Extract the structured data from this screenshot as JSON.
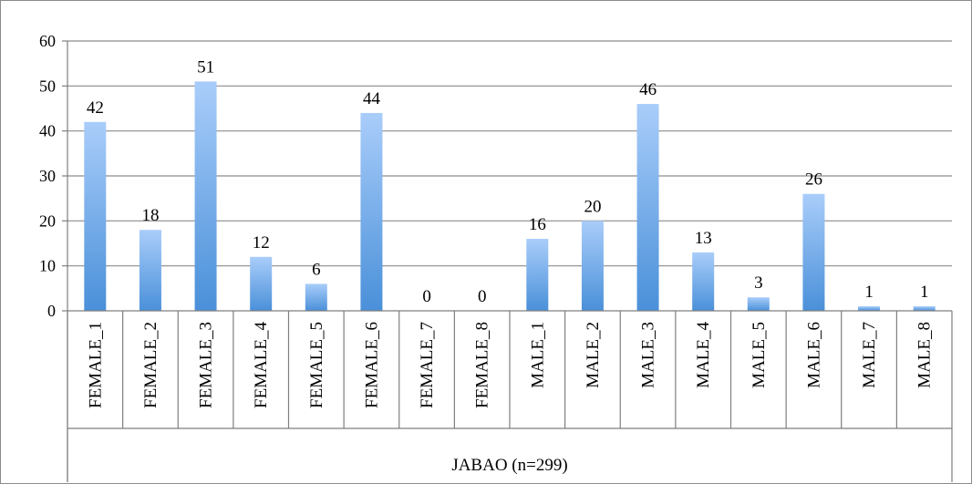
{
  "chart_data": {
    "type": "bar",
    "categories": [
      "FEMALE_1",
      "FEMALE_2",
      "FEMALE_3",
      "FEMALE_4",
      "FEMALE_5",
      "FEMALE_6",
      "FEMALE_7",
      "FEMALE_8",
      "MALE_1",
      "MALE_2",
      "MALE_3",
      "MALE_4",
      "MALE_5",
      "MALE_6",
      "MALE_7",
      "MALE_8"
    ],
    "values": [
      42,
      18,
      51,
      12,
      6,
      44,
      0,
      0,
      16,
      20,
      46,
      13,
      3,
      26,
      1,
      1
    ],
    "group_label": "JABAO (n=299)",
    "title": "",
    "xlabel": "",
    "ylabel": "",
    "ylim": [
      0,
      60
    ],
    "yticks": [
      0,
      10,
      20,
      30,
      40,
      50,
      60
    ],
    "grid": true,
    "legend": "none",
    "colors": {
      "bar_top": "#a9cdfa",
      "bar_bottom": "#4a90d9",
      "grid": "#8c8c8c",
      "axis": "#7f7f7f"
    }
  }
}
